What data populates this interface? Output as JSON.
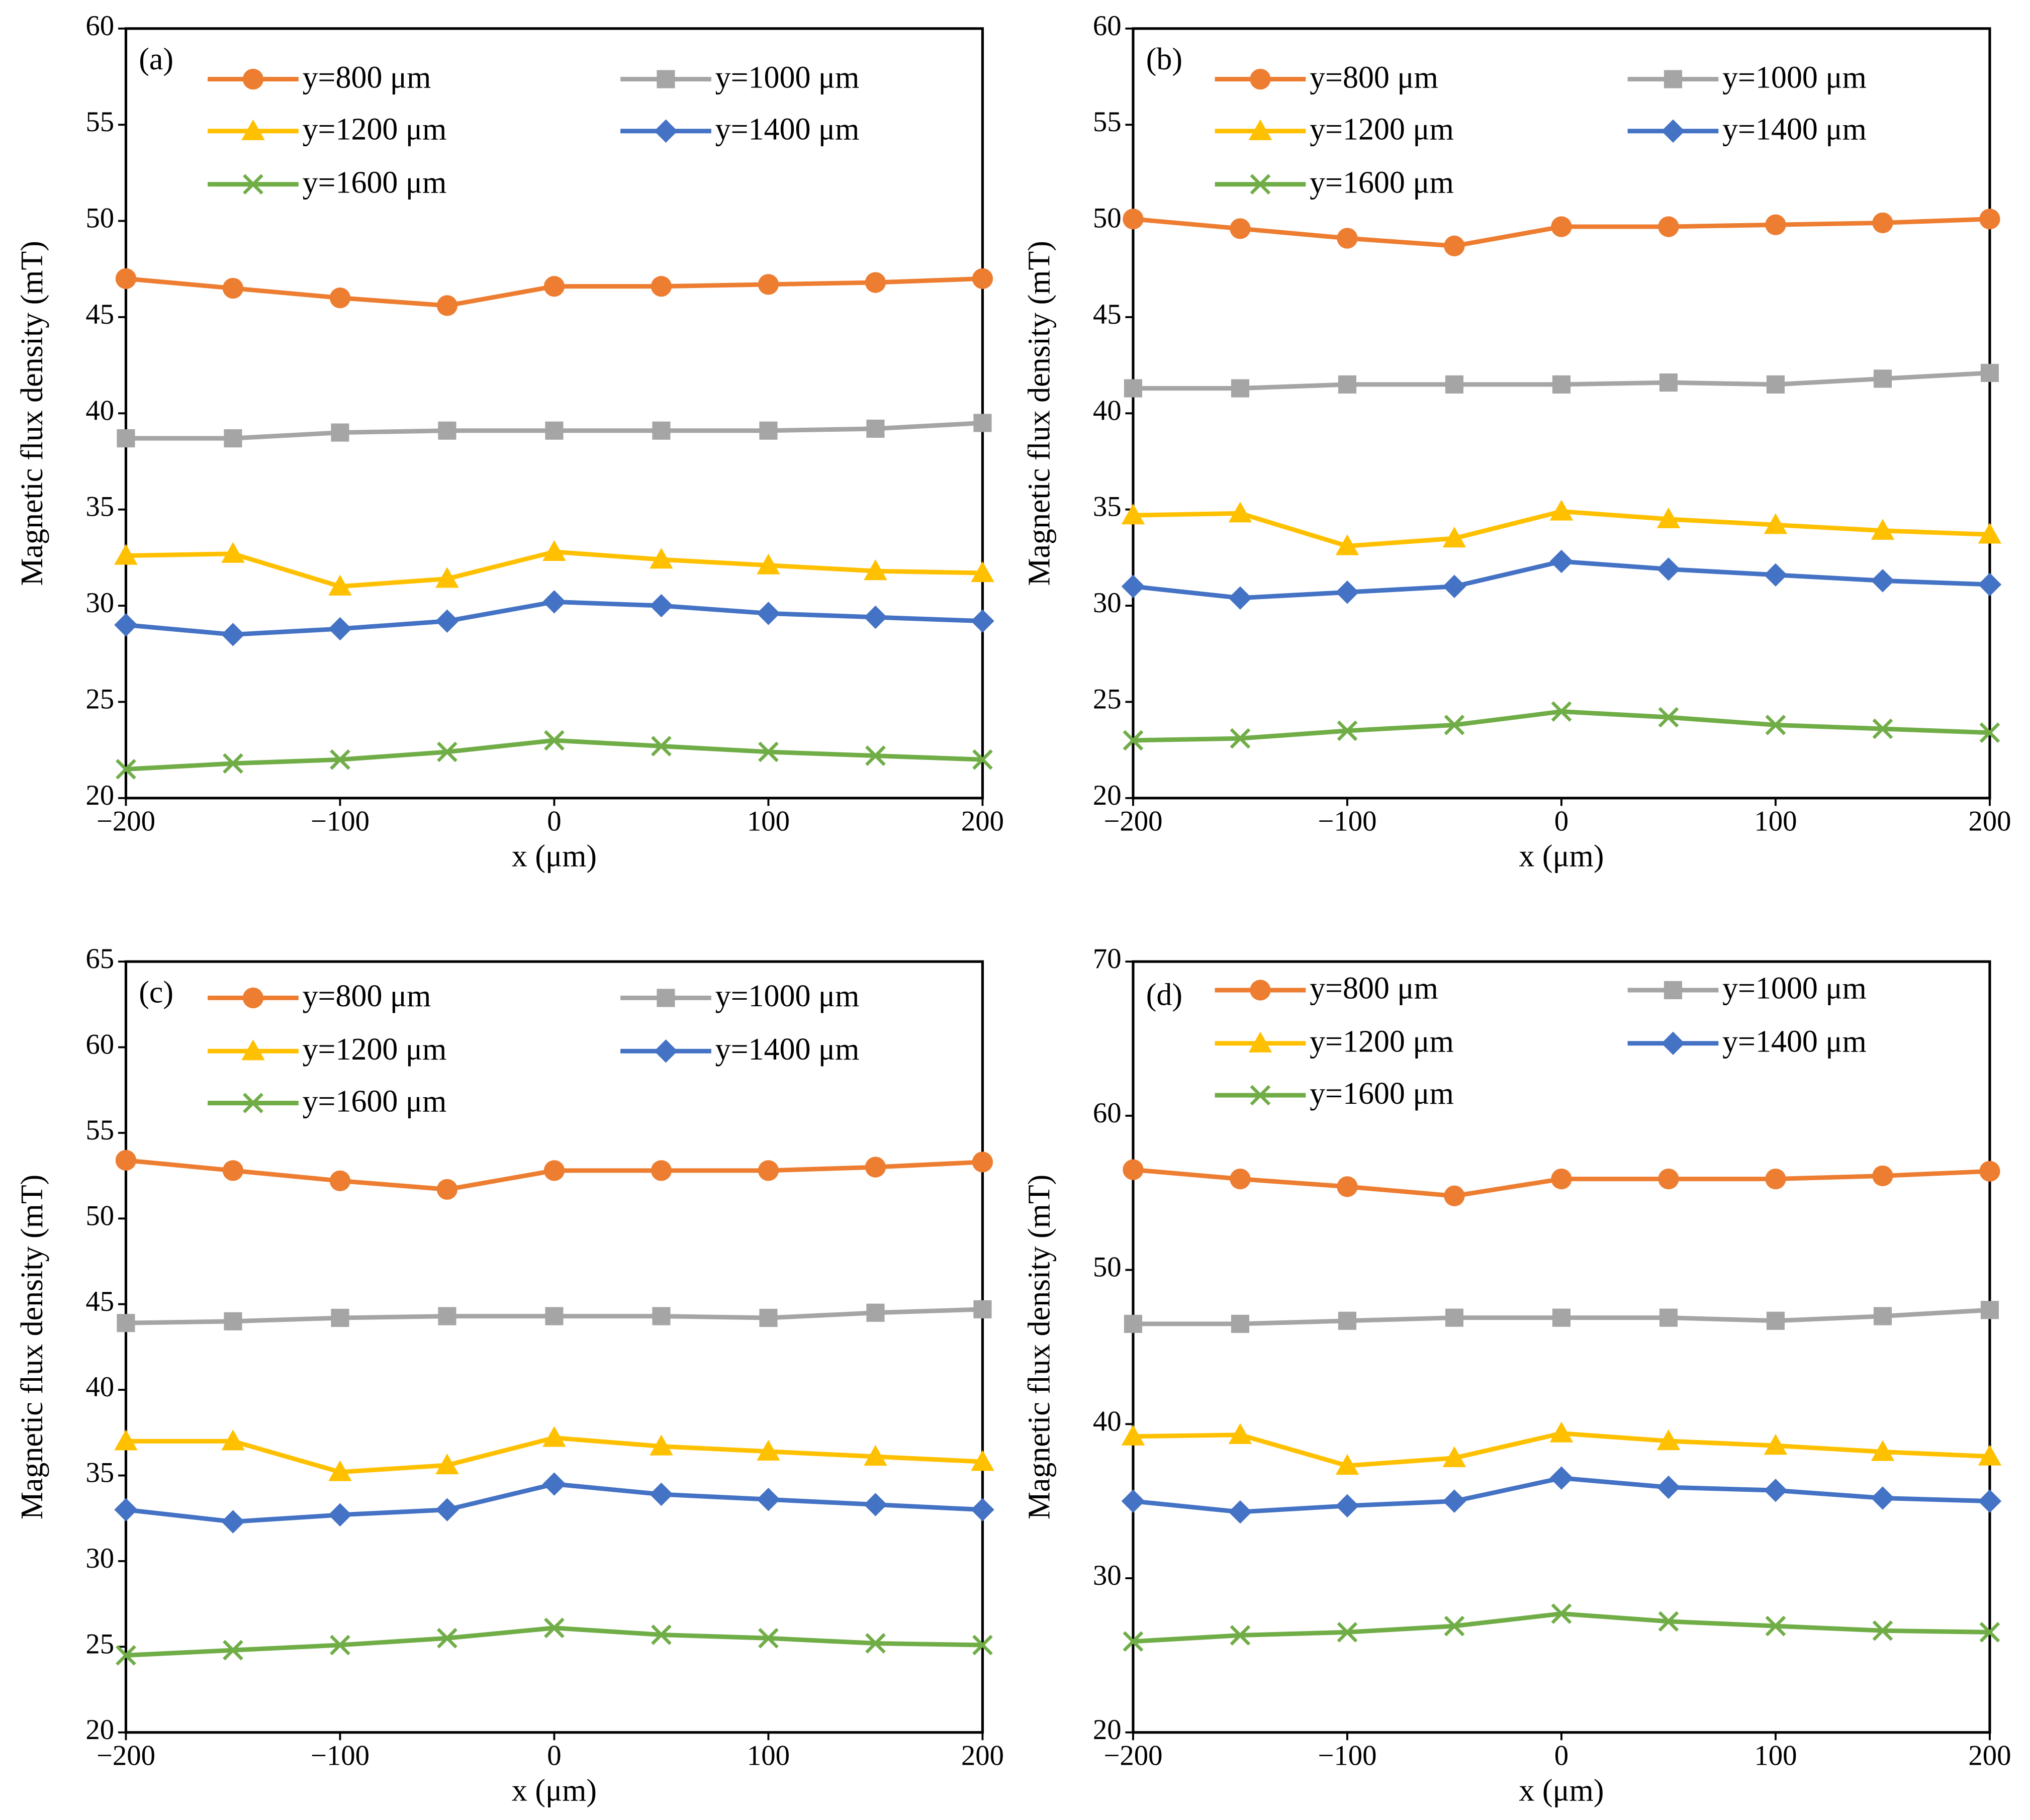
{
  "chart_data": [
    {
      "type": "line",
      "panel_label": "(a)",
      "xlabel": "x (μm)",
      "ylabel": "Magnetic flux density (mT)",
      "x": [
        -200,
        -150,
        -100,
        -50,
        0,
        50,
        100,
        150,
        200
      ],
      "xlim": [
        -200,
        200
      ],
      "xticks": [
        {
          "value": -200,
          "label": "−200"
        },
        {
          "value": -100,
          "label": "−100"
        },
        0,
        100,
        200
      ],
      "ylim": [
        20,
        60
      ],
      "yticks": [
        20,
        25,
        30,
        35,
        40,
        45,
        50,
        55,
        60
      ],
      "series": [
        {
          "name": "y=800 μm",
          "color": "#ed7d31",
          "marker": "circle",
          "values": [
            47.0,
            46.5,
            46.0,
            45.6,
            46.6,
            46.6,
            46.7,
            46.8,
            47.0
          ]
        },
        {
          "name": "y=1000 μm",
          "color": "#a5a5a5",
          "marker": "square",
          "values": [
            38.7,
            38.7,
            39.0,
            39.1,
            39.1,
            39.1,
            39.1,
            39.2,
            39.5
          ]
        },
        {
          "name": "y=1200 μm",
          "color": "#ffc000",
          "marker": "triangle",
          "values": [
            32.6,
            32.7,
            31.0,
            31.4,
            32.8,
            32.4,
            32.1,
            31.8,
            31.7
          ]
        },
        {
          "name": "y=1400 μm",
          "color": "#4472c4",
          "marker": "diamond",
          "values": [
            29.0,
            28.5,
            28.8,
            29.2,
            30.2,
            30.0,
            29.6,
            29.4,
            29.2
          ]
        },
        {
          "name": "y=1600 μm",
          "color": "#70ad47",
          "marker": "x",
          "values": [
            21.5,
            21.8,
            22.0,
            22.4,
            23.0,
            22.7,
            22.4,
            22.2,
            22.0
          ]
        }
      ]
    },
    {
      "type": "line",
      "panel_label": "(b)",
      "xlabel": "x (μm)",
      "ylabel": "Magnetic flux density (mT)",
      "x": [
        -200,
        -150,
        -100,
        -50,
        0,
        50,
        100,
        150,
        200
      ],
      "xlim": [
        -200,
        200
      ],
      "xticks": [
        {
          "value": -200,
          "label": "−200"
        },
        {
          "value": -100,
          "label": "−100"
        },
        0,
        100,
        200
      ],
      "ylim": [
        20,
        60
      ],
      "yticks": [
        20,
        25,
        30,
        35,
        40,
        45,
        50,
        55,
        60
      ],
      "series": [
        {
          "name": "y=800 μm",
          "color": "#ed7d31",
          "marker": "circle",
          "values": [
            50.1,
            49.6,
            49.1,
            48.7,
            49.7,
            49.7,
            49.8,
            49.9,
            50.1
          ]
        },
        {
          "name": "y=1000 μm",
          "color": "#a5a5a5",
          "marker": "square",
          "values": [
            41.3,
            41.3,
            41.5,
            41.5,
            41.5,
            41.6,
            41.5,
            41.8,
            42.1
          ]
        },
        {
          "name": "y=1200 μm",
          "color": "#ffc000",
          "marker": "triangle",
          "values": [
            34.7,
            34.8,
            33.1,
            33.5,
            34.9,
            34.5,
            34.2,
            33.9,
            33.7
          ]
        },
        {
          "name": "y=1400 μm",
          "color": "#4472c4",
          "marker": "diamond",
          "values": [
            31.0,
            30.4,
            30.7,
            31.0,
            32.3,
            31.9,
            31.6,
            31.3,
            31.1
          ]
        },
        {
          "name": "y=1600 μm",
          "color": "#70ad47",
          "marker": "x",
          "values": [
            23.0,
            23.1,
            23.5,
            23.8,
            24.5,
            24.2,
            23.8,
            23.6,
            23.4
          ]
        }
      ]
    },
    {
      "type": "line",
      "panel_label": "(c)",
      "xlabel": "x (μm)",
      "ylabel": "Magnetic flux density (mT)",
      "x": [
        -200,
        -150,
        -100,
        -50,
        0,
        50,
        100,
        150,
        200
      ],
      "xlim": [
        -200,
        200
      ],
      "xticks": [
        {
          "value": -200,
          "label": "−200"
        },
        {
          "value": -100,
          "label": "−100"
        },
        0,
        100,
        200
      ],
      "ylim": [
        20,
        65
      ],
      "yticks": [
        20,
        25,
        30,
        35,
        40,
        45,
        50,
        55,
        60,
        65
      ],
      "series": [
        {
          "name": "y=800 μm",
          "color": "#ed7d31",
          "marker": "circle",
          "values": [
            53.4,
            52.8,
            52.2,
            51.7,
            52.8,
            52.8,
            52.8,
            53.0,
            53.3
          ]
        },
        {
          "name": "y=1000 μm",
          "color": "#a5a5a5",
          "marker": "square",
          "values": [
            43.9,
            44.0,
            44.2,
            44.3,
            44.3,
            44.3,
            44.2,
            44.5,
            44.7
          ]
        },
        {
          "name": "y=1200 μm",
          "color": "#ffc000",
          "marker": "triangle",
          "values": [
            37.0,
            37.0,
            35.2,
            35.6,
            37.2,
            36.7,
            36.4,
            36.1,
            35.8
          ]
        },
        {
          "name": "y=1400 μm",
          "color": "#4472c4",
          "marker": "diamond",
          "values": [
            33.0,
            32.3,
            32.7,
            33.0,
            34.5,
            33.9,
            33.6,
            33.3,
            33.0
          ]
        },
        {
          "name": "y=1600 μm",
          "color": "#70ad47",
          "marker": "x",
          "values": [
            24.5,
            24.8,
            25.1,
            25.5,
            26.1,
            25.7,
            25.5,
            25.2,
            25.1
          ]
        }
      ]
    },
    {
      "type": "line",
      "panel_label": "(d)",
      "xlabel": "x (μm)",
      "ylabel": "Magnetic flux density (mT)",
      "x": [
        -200,
        -150,
        -100,
        -50,
        0,
        50,
        100,
        150,
        200
      ],
      "xlim": [
        -200,
        200
      ],
      "xticks": [
        {
          "value": -200,
          "label": "−200"
        },
        {
          "value": -100,
          "label": "−100"
        },
        0,
        100,
        200
      ],
      "ylim": [
        20,
        70
      ],
      "yticks": [
        20,
        30,
        40,
        50,
        60,
        70
      ],
      "series": [
        {
          "name": "y=800 μm",
          "color": "#ed7d31",
          "marker": "circle",
          "values": [
            56.5,
            55.9,
            55.4,
            54.8,
            55.9,
            55.9,
            55.9,
            56.1,
            56.4
          ]
        },
        {
          "name": "y=1000 μm",
          "color": "#a5a5a5",
          "marker": "square",
          "values": [
            46.5,
            46.5,
            46.7,
            46.9,
            46.9,
            46.9,
            46.7,
            47.0,
            47.4
          ]
        },
        {
          "name": "y=1200 μm",
          "color": "#ffc000",
          "marker": "triangle",
          "values": [
            39.2,
            39.3,
            37.3,
            37.8,
            39.4,
            38.9,
            38.6,
            38.2,
            37.9
          ]
        },
        {
          "name": "y=1400 μm",
          "color": "#4472c4",
          "marker": "diamond",
          "values": [
            35.0,
            34.3,
            34.7,
            35.0,
            36.5,
            35.9,
            35.7,
            35.2,
            35.0
          ]
        },
        {
          "name": "y=1600 μm",
          "color": "#70ad47",
          "marker": "x",
          "values": [
            25.9,
            26.3,
            26.5,
            26.9,
            27.7,
            27.2,
            26.9,
            26.6,
            26.5
          ]
        }
      ]
    }
  ]
}
